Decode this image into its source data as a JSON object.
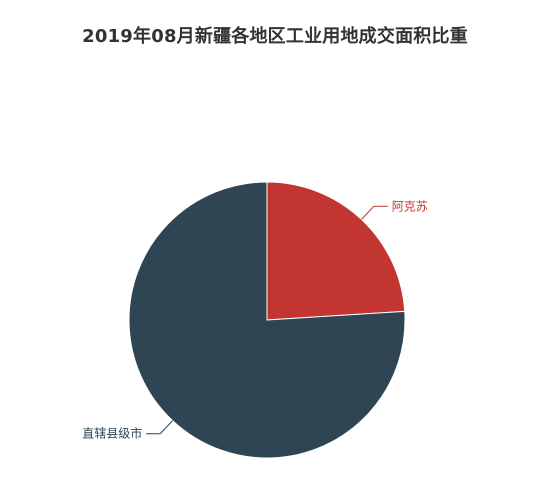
{
  "chart_data": {
    "type": "pie",
    "title": "2019年08月新疆各地区工业用地成交面积比重",
    "categories": [
      "阿克苏",
      "直辖县级市"
    ],
    "values": [
      24,
      76
    ],
    "unit": "%",
    "series": [
      {
        "name": "",
        "values": [
          24,
          76
        ]
      }
    ],
    "colors": [
      "#c23531",
      "#2f4554"
    ],
    "start_angle": "12 o'clock, clockwise",
    "legend": "none"
  }
}
